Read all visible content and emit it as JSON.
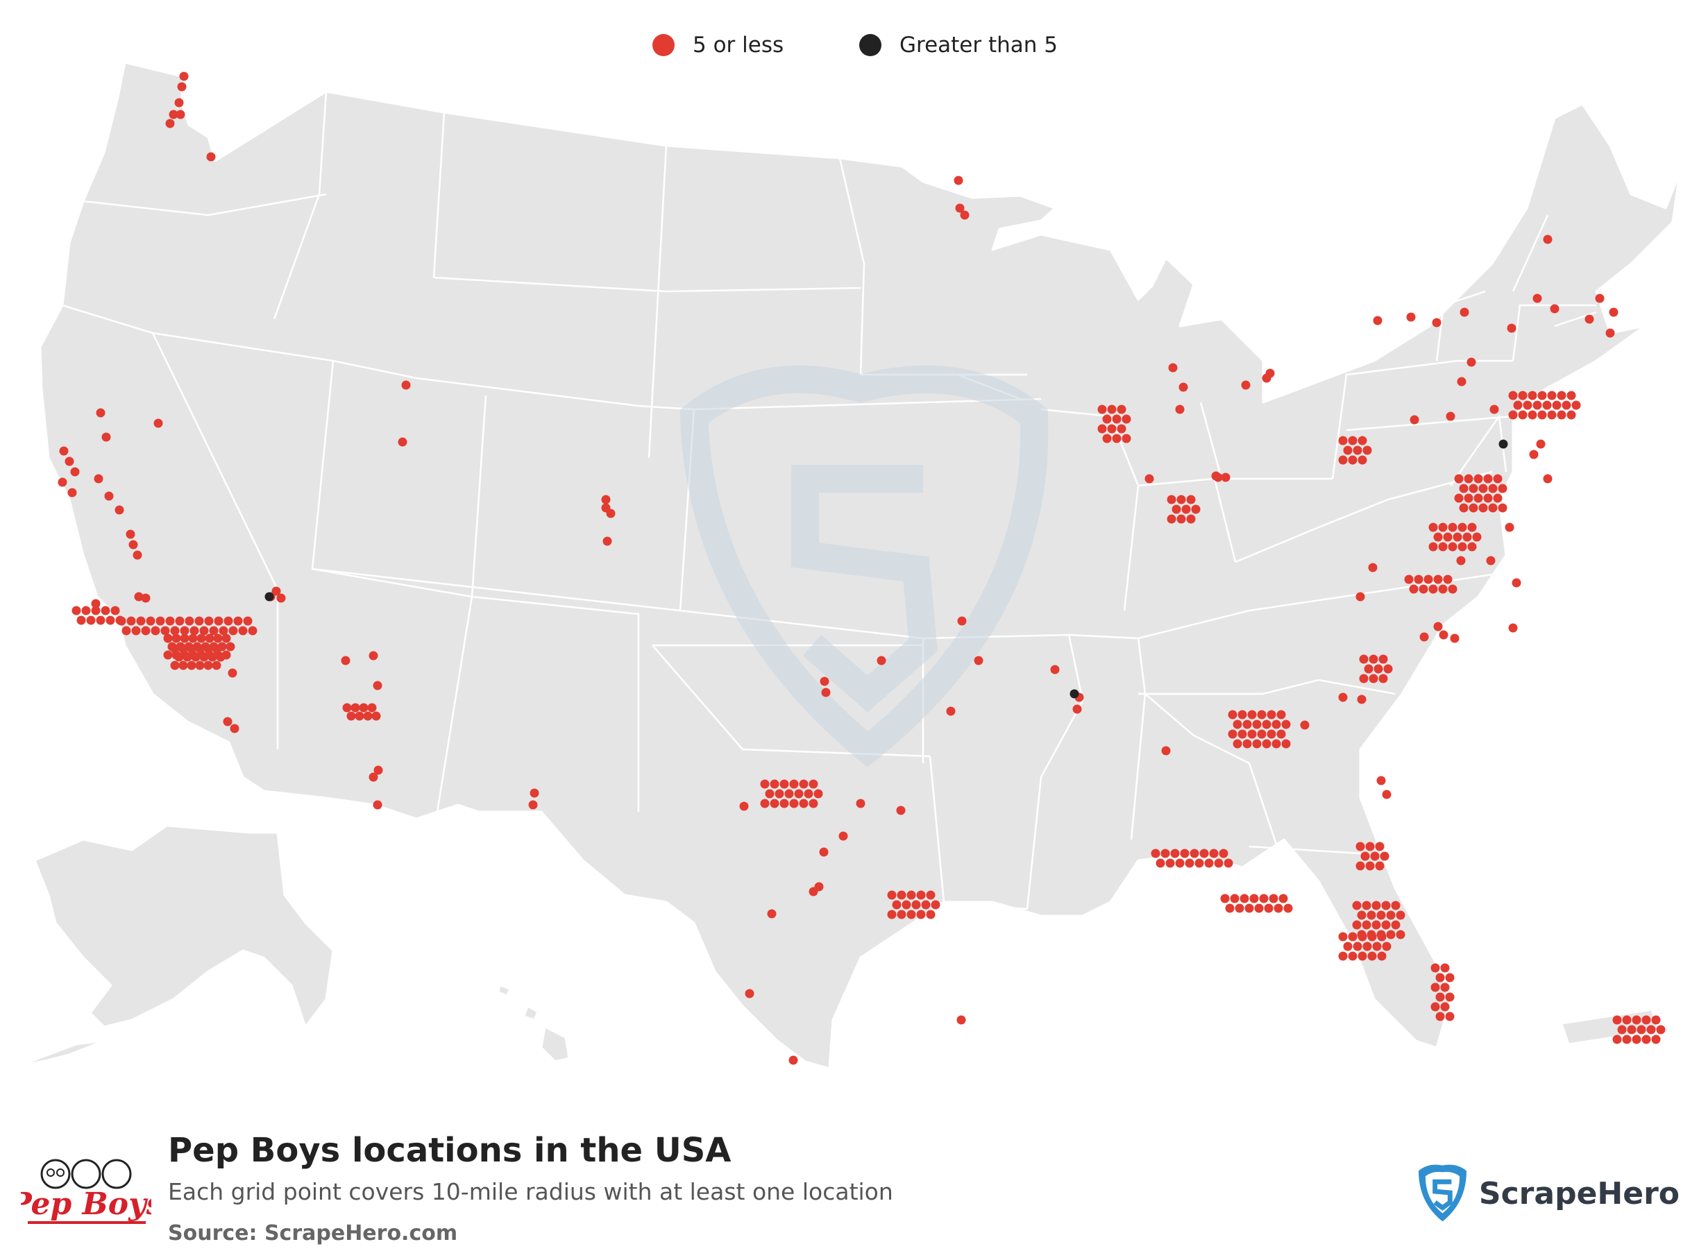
{
  "legend": {
    "items": [
      {
        "label": "5 or less",
        "color": "#e23b31"
      },
      {
        "label": "Greater than 5",
        "color": "#222222"
      }
    ]
  },
  "footer": {
    "title": "Pep Boys locations in the USA",
    "subtitle": "Each grid point covers 10-mile radius with at least one location",
    "source": "Source: ScrapeHero.com",
    "brand_logo_text": "Pep Boys",
    "scrapehero_logo_text": "ScrapeHero"
  },
  "colors": {
    "land": "#e5e5e5",
    "borders": "#ffffff",
    "low": "#e23b31",
    "high": "#222222",
    "watermark": "#c9d6e0",
    "brand_red": "#d6202a",
    "scrapehero_blue": "#2f8fd0"
  }
}
